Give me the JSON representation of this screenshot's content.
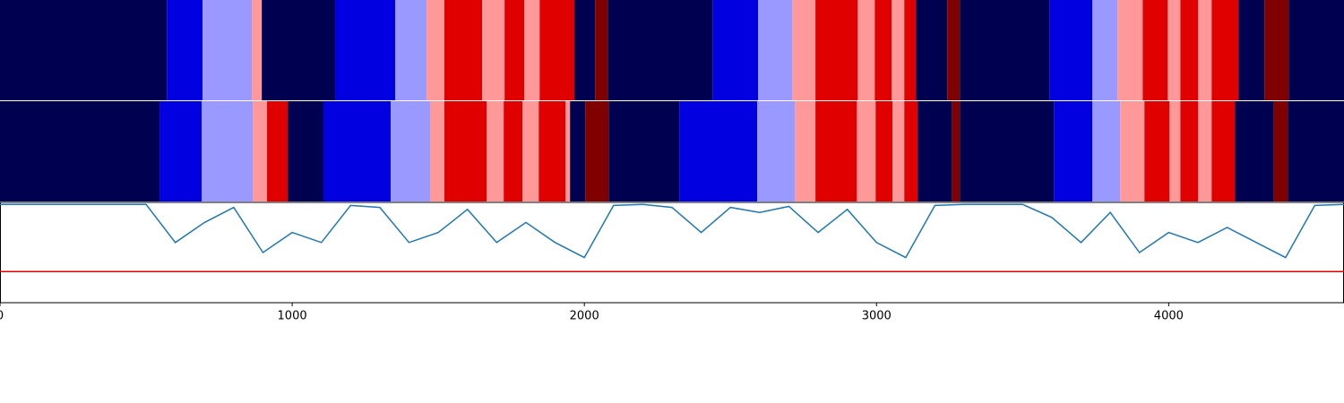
{
  "chart_data": {
    "type": "segmentation",
    "state_colors": [
      "#000050",
      "#0000e0",
      "#9999ff",
      "#ff9999",
      "#e00000",
      "#800000"
    ],
    "rows": [
      {
        "boundaries": [
          0,
          571,
          693,
          862,
          896,
          1147,
          1353,
          1460,
          1521,
          1650,
          1727,
          1794,
          1847,
          1966,
          2037,
          2080,
          2439,
          2595,
          2712,
          2791,
          2936,
          2994,
          3052,
          3095,
          3135,
          3242,
          3285,
          3592,
          3739,
          3825,
          3911,
          3997,
          4040,
          4101,
          4147,
          4239,
          4328,
          4411,
          4600
        ],
        "states": [
          0,
          1,
          2,
          3,
          0,
          1,
          2,
          3,
          4,
          3,
          4,
          3,
          4,
          0,
          5,
          0,
          1,
          2,
          3,
          4,
          3,
          4,
          3,
          4,
          0,
          5,
          0,
          1,
          2,
          3,
          4,
          3,
          4,
          3,
          4,
          0,
          5,
          0
        ]
      },
      {
        "boundaries": [
          0,
          546,
          690,
          865,
          914,
          985,
          1107,
          1337,
          1472,
          1521,
          1666,
          1724,
          1788,
          1844,
          1936,
          1951,
          2003,
          2083,
          2325,
          2592,
          2721,
          2791,
          2933,
          2997,
          3055,
          3095,
          3141,
          3258,
          3285,
          3607,
          3739,
          3834,
          3917,
          4003,
          4040,
          4101,
          4147,
          4227,
          4359,
          4408,
          4600
        ],
        "states": [
          0,
          1,
          2,
          3,
          4,
          0,
          1,
          2,
          3,
          4,
          3,
          4,
          3,
          4,
          3,
          0,
          5,
          0,
          1,
          2,
          3,
          4,
          3,
          4,
          3,
          4,
          0,
          5,
          0,
          1,
          2,
          3,
          4,
          3,
          4,
          3,
          4,
          0,
          5,
          0
        ]
      }
    ],
    "x": [
      0,
      100,
      200,
      300,
      400,
      500,
      600,
      700,
      800,
      900,
      1000,
      1100,
      1200,
      1300,
      1400,
      1500,
      1600,
      1700,
      1800,
      1900,
      2000,
      2100,
      2200,
      2300,
      2400,
      2500,
      2600,
      2700,
      2800,
      2900,
      3000,
      3100,
      3200,
      3300,
      3400,
      3500,
      3600,
      3700,
      3800,
      3900,
      4000,
      4100,
      4200,
      4300,
      4400,
      4500,
      4600
    ],
    "series": [
      {
        "color": "#1f77b4",
        "values": [
          0.98,
          0.98,
          0.98,
          0.98,
          0.98,
          0.98,
          0.6,
          0.8,
          0.95,
          0.5,
          0.7,
          0.6,
          0.97,
          0.95,
          0.6,
          0.7,
          0.93,
          0.6,
          0.8,
          0.6,
          0.45,
          0.97,
          0.98,
          0.95,
          0.7,
          0.95,
          0.9,
          0.96,
          0.7,
          0.93,
          0.6,
          0.45,
          0.97,
          0.98,
          0.98,
          0.98,
          0.85,
          0.6,
          0.9,
          0.5,
          0.7,
          0.6,
          0.75,
          0.6,
          0.45,
          0.97,
          0.98
        ]
      }
    ],
    "threshold": 0.31,
    "threshold_color": "#e00000",
    "xlim": [
      0,
      4600
    ],
    "xticks": [
      0,
      1000,
      2000,
      3000,
      4000
    ],
    "ylim": [
      0,
      1
    ]
  }
}
